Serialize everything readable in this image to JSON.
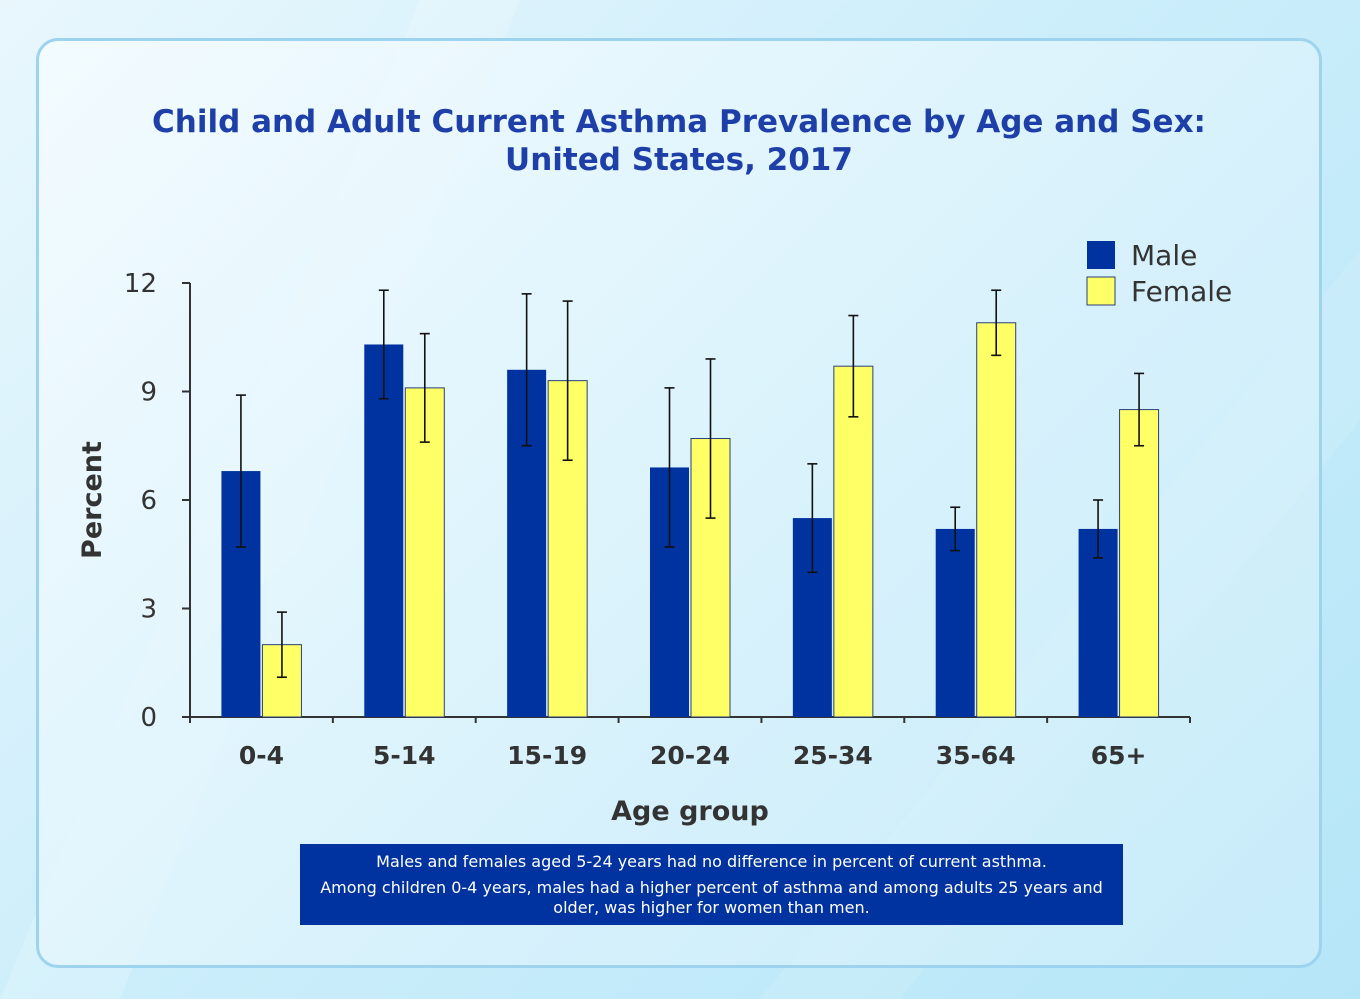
{
  "title_line1": "Child and Adult Current Asthma Prevalence by Age and Sex:",
  "title_line2": "United States, 2017",
  "note_line1": "Males and females aged 5-24 years had no difference in percent of current asthma.",
  "note_line2": "Among children 0-4 years, males had a higher percent of asthma and among adults 25 years and older, was higher for women than men.",
  "colors": {
    "male": "#0033a0",
    "female": "#ffff66",
    "title": "#1f3fa8",
    "axis": "#333333"
  },
  "chart_data": {
    "type": "bar",
    "title": "Child and Adult Current Asthma Prevalence by Age and Sex: United States, 2017",
    "xlabel": "Age group",
    "ylabel": "Percent",
    "ylim": [
      0,
      12
    ],
    "yticks": [
      "0",
      "3",
      "6",
      "9",
      "12"
    ],
    "grid": false,
    "legend_position": "top-right",
    "categories": [
      "0-4",
      "5-14",
      "15-19",
      "20-24",
      "25-34",
      "35-64",
      "65+"
    ],
    "series": [
      {
        "name": "Male",
        "values": [
          6.8,
          10.3,
          9.6,
          6.9,
          5.5,
          5.2,
          5.2
        ],
        "error_low": [
          4.7,
          8.8,
          7.5,
          4.7,
          4.0,
          4.6,
          4.4
        ],
        "error_high": [
          8.9,
          11.8,
          11.7,
          9.1,
          7.0,
          5.8,
          6.0
        ]
      },
      {
        "name": "Female",
        "values": [
          2.0,
          9.1,
          9.3,
          7.7,
          9.7,
          10.9,
          8.5
        ],
        "error_low": [
          1.1,
          7.6,
          7.1,
          5.5,
          8.3,
          10.0,
          7.5
        ],
        "error_high": [
          2.9,
          10.6,
          11.5,
          9.9,
          11.1,
          11.8,
          9.5
        ]
      }
    ]
  }
}
